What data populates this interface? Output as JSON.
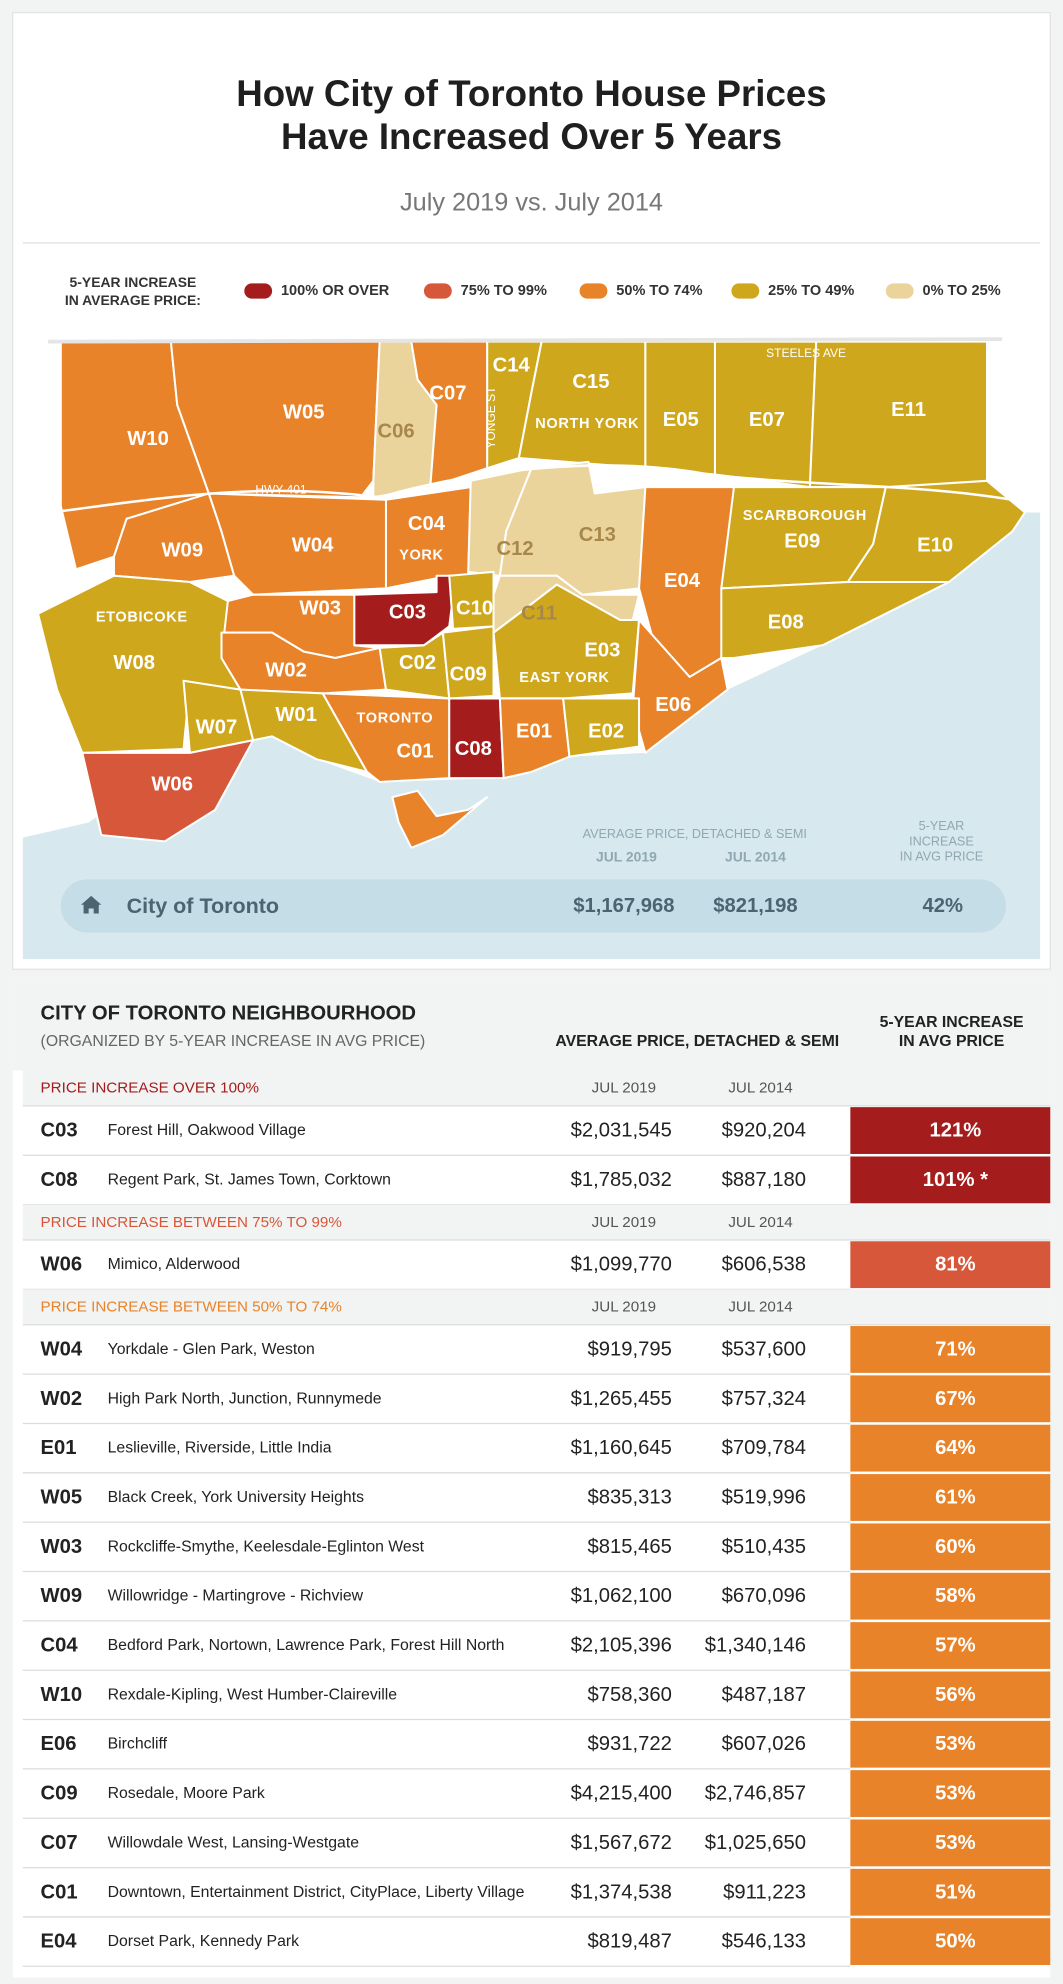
{
  "header": {
    "title_lines": [
      "How City of Toronto House Prices",
      "Have Increased Over 5 Years"
    ],
    "subtitle": "July 2019 vs. July 2014"
  },
  "legend": {
    "title_lines": [
      "5-YEAR INCREASE",
      "IN AVERAGE PRICE:"
    ],
    "items": [
      {
        "label": "100% OR OVER",
        "color": "#a51c1c"
      },
      {
        "label": "75% TO 99%",
        "color": "#d6573a"
      },
      {
        "label": "50% TO 74%",
        "color": "#e8832a"
      },
      {
        "label": "25% TO 49%",
        "color": "#cfa71c"
      },
      {
        "label": "0% TO 25%",
        "color": "#ebd49c"
      }
    ]
  },
  "map": {
    "districts": [
      "W10",
      "W05",
      "C06",
      "C07",
      "C14",
      "C15",
      "E05",
      "E07",
      "E11",
      "W09",
      "W04",
      "C04",
      "C12",
      "C13",
      "E04",
      "E09",
      "E10",
      "W03",
      "C03",
      "C10",
      "C11",
      "E08",
      "W08",
      "W02",
      "C02",
      "C09",
      "E03",
      "E06",
      "W07",
      "W01",
      "C01",
      "C08",
      "E01",
      "E02",
      "W06"
    ],
    "areas": [
      "NORTH YORK",
      "YORK",
      "SCARBOROUGH",
      "ETOBICOKE",
      "EAST YORK",
      "TORONTO"
    ],
    "roads": [
      "HWY 401",
      "YONGE ST",
      "STEELES AVE"
    ]
  },
  "city_summary": {
    "price_heading": "AVERAGE PRICE, DETACHED & SEMI",
    "columns": [
      "JUL 2019",
      "JUL 2014"
    ],
    "increase_heading": [
      "5-YEAR",
      "INCREASE",
      "IN AVG PRICE"
    ],
    "name": "City of Toronto",
    "jul_2019": "$1,167,968",
    "jul_2014": "$821,198",
    "increase": "42%"
  },
  "table": {
    "title": "CITY OF TORONTO NEIGHBOURHOOD",
    "subtitle": "(ORGANIZED BY 5-YEAR INCREASE IN AVG PRICE)",
    "price_heading": "AVERAGE PRICE, DETACHED & SEMI",
    "increase_heading": [
      "5-YEAR INCREASE",
      "IN AVG PRICE"
    ],
    "sections": [
      {
        "heading": "PRICE INCREASE OVER 100%",
        "color": "#a51c1c",
        "columns": [
          "JUL 2019",
          "JUL 2014"
        ],
        "rows": [
          {
            "code": "C03",
            "name": "Forest Hill, Oakwood Village",
            "jul_2019": "$2,031,545",
            "jul_2014": "$920,204",
            "increase": "121%"
          },
          {
            "code": "C08",
            "name": "Regent Park, St. James Town, Corktown",
            "jul_2019": "$1,785,032",
            "jul_2014": "$887,180",
            "increase": "101% *"
          }
        ]
      },
      {
        "heading": "PRICE INCREASE BETWEEN 75% TO 99%",
        "color": "#d6573a",
        "columns": [
          "JUL 2019",
          "JUL 2014"
        ],
        "rows": [
          {
            "code": "W06",
            "name": "Mimico, Alderwood",
            "jul_2019": "$1,099,770",
            "jul_2014": "$606,538",
            "increase": "81%"
          }
        ]
      },
      {
        "heading": "PRICE INCREASE BETWEEN 50% TO 74%",
        "color": "#e8832a",
        "columns": [
          "JUL 2019",
          "JUL 2014"
        ],
        "rows": [
          {
            "code": "W04",
            "name": "Yorkdale - Glen Park, Weston",
            "jul_2019": "$919,795",
            "jul_2014": "$537,600",
            "increase": "71%"
          },
          {
            "code": "W02",
            "name": "High Park North, Junction, Runnymede",
            "jul_2019": "$1,265,455",
            "jul_2014": "$757,324",
            "increase": "67%"
          },
          {
            "code": "E01",
            "name": "Leslieville, Riverside, Little India",
            "jul_2019": "$1,160,645",
            "jul_2014": "$709,784",
            "increase": "64%"
          },
          {
            "code": "W05",
            "name": "Black Creek, York University Heights",
            "jul_2019": "$835,313",
            "jul_2014": "$519,996",
            "increase": "61%"
          },
          {
            "code": "W03",
            "name": "Rockcliffe-Smythe, Keelesdale-Eglinton West",
            "jul_2019": "$815,465",
            "jul_2014": "$510,435",
            "increase": "60%"
          },
          {
            "code": "W09",
            "name": "Willowridge - Martingrove - Richview",
            "jul_2019": "$1,062,100",
            "jul_2014": "$670,096",
            "increase": "58%"
          },
          {
            "code": "C04",
            "name": "Bedford Park, Nortown, Lawrence Park, Forest Hill North",
            "jul_2019": "$2,105,396",
            "jul_2014": "$1,340,146",
            "increase": "57%"
          },
          {
            "code": "W10",
            "name": "Rexdale-Kipling, West Humber-Claireville",
            "jul_2019": "$758,360",
            "jul_2014": "$487,187",
            "increase": "56%"
          },
          {
            "code": "E06",
            "name": "Birchcliff",
            "jul_2019": "$931,722",
            "jul_2014": "$607,026",
            "increase": "53%"
          },
          {
            "code": "C09",
            "name": "Rosedale, Moore Park",
            "jul_2019": "$4,215,400",
            "jul_2014": "$2,746,857",
            "increase": "53%"
          },
          {
            "code": "C07",
            "name": "Willowdale West, Lansing-Westgate",
            "jul_2019": "$1,567,672",
            "jul_2014": "$1,025,650",
            "increase": "53%"
          },
          {
            "code": "C01",
            "name": "Downtown, Entertainment District, CityPlace, Liberty Village",
            "jul_2019": "$1,374,538",
            "jul_2014": "$911,223",
            "increase": "51%"
          },
          {
            "code": "E04",
            "name": "Dorset Park, Kennedy Park",
            "jul_2019": "$819,487",
            "jul_2014": "$546,133",
            "increase": "50%"
          }
        ]
      }
    ]
  }
}
